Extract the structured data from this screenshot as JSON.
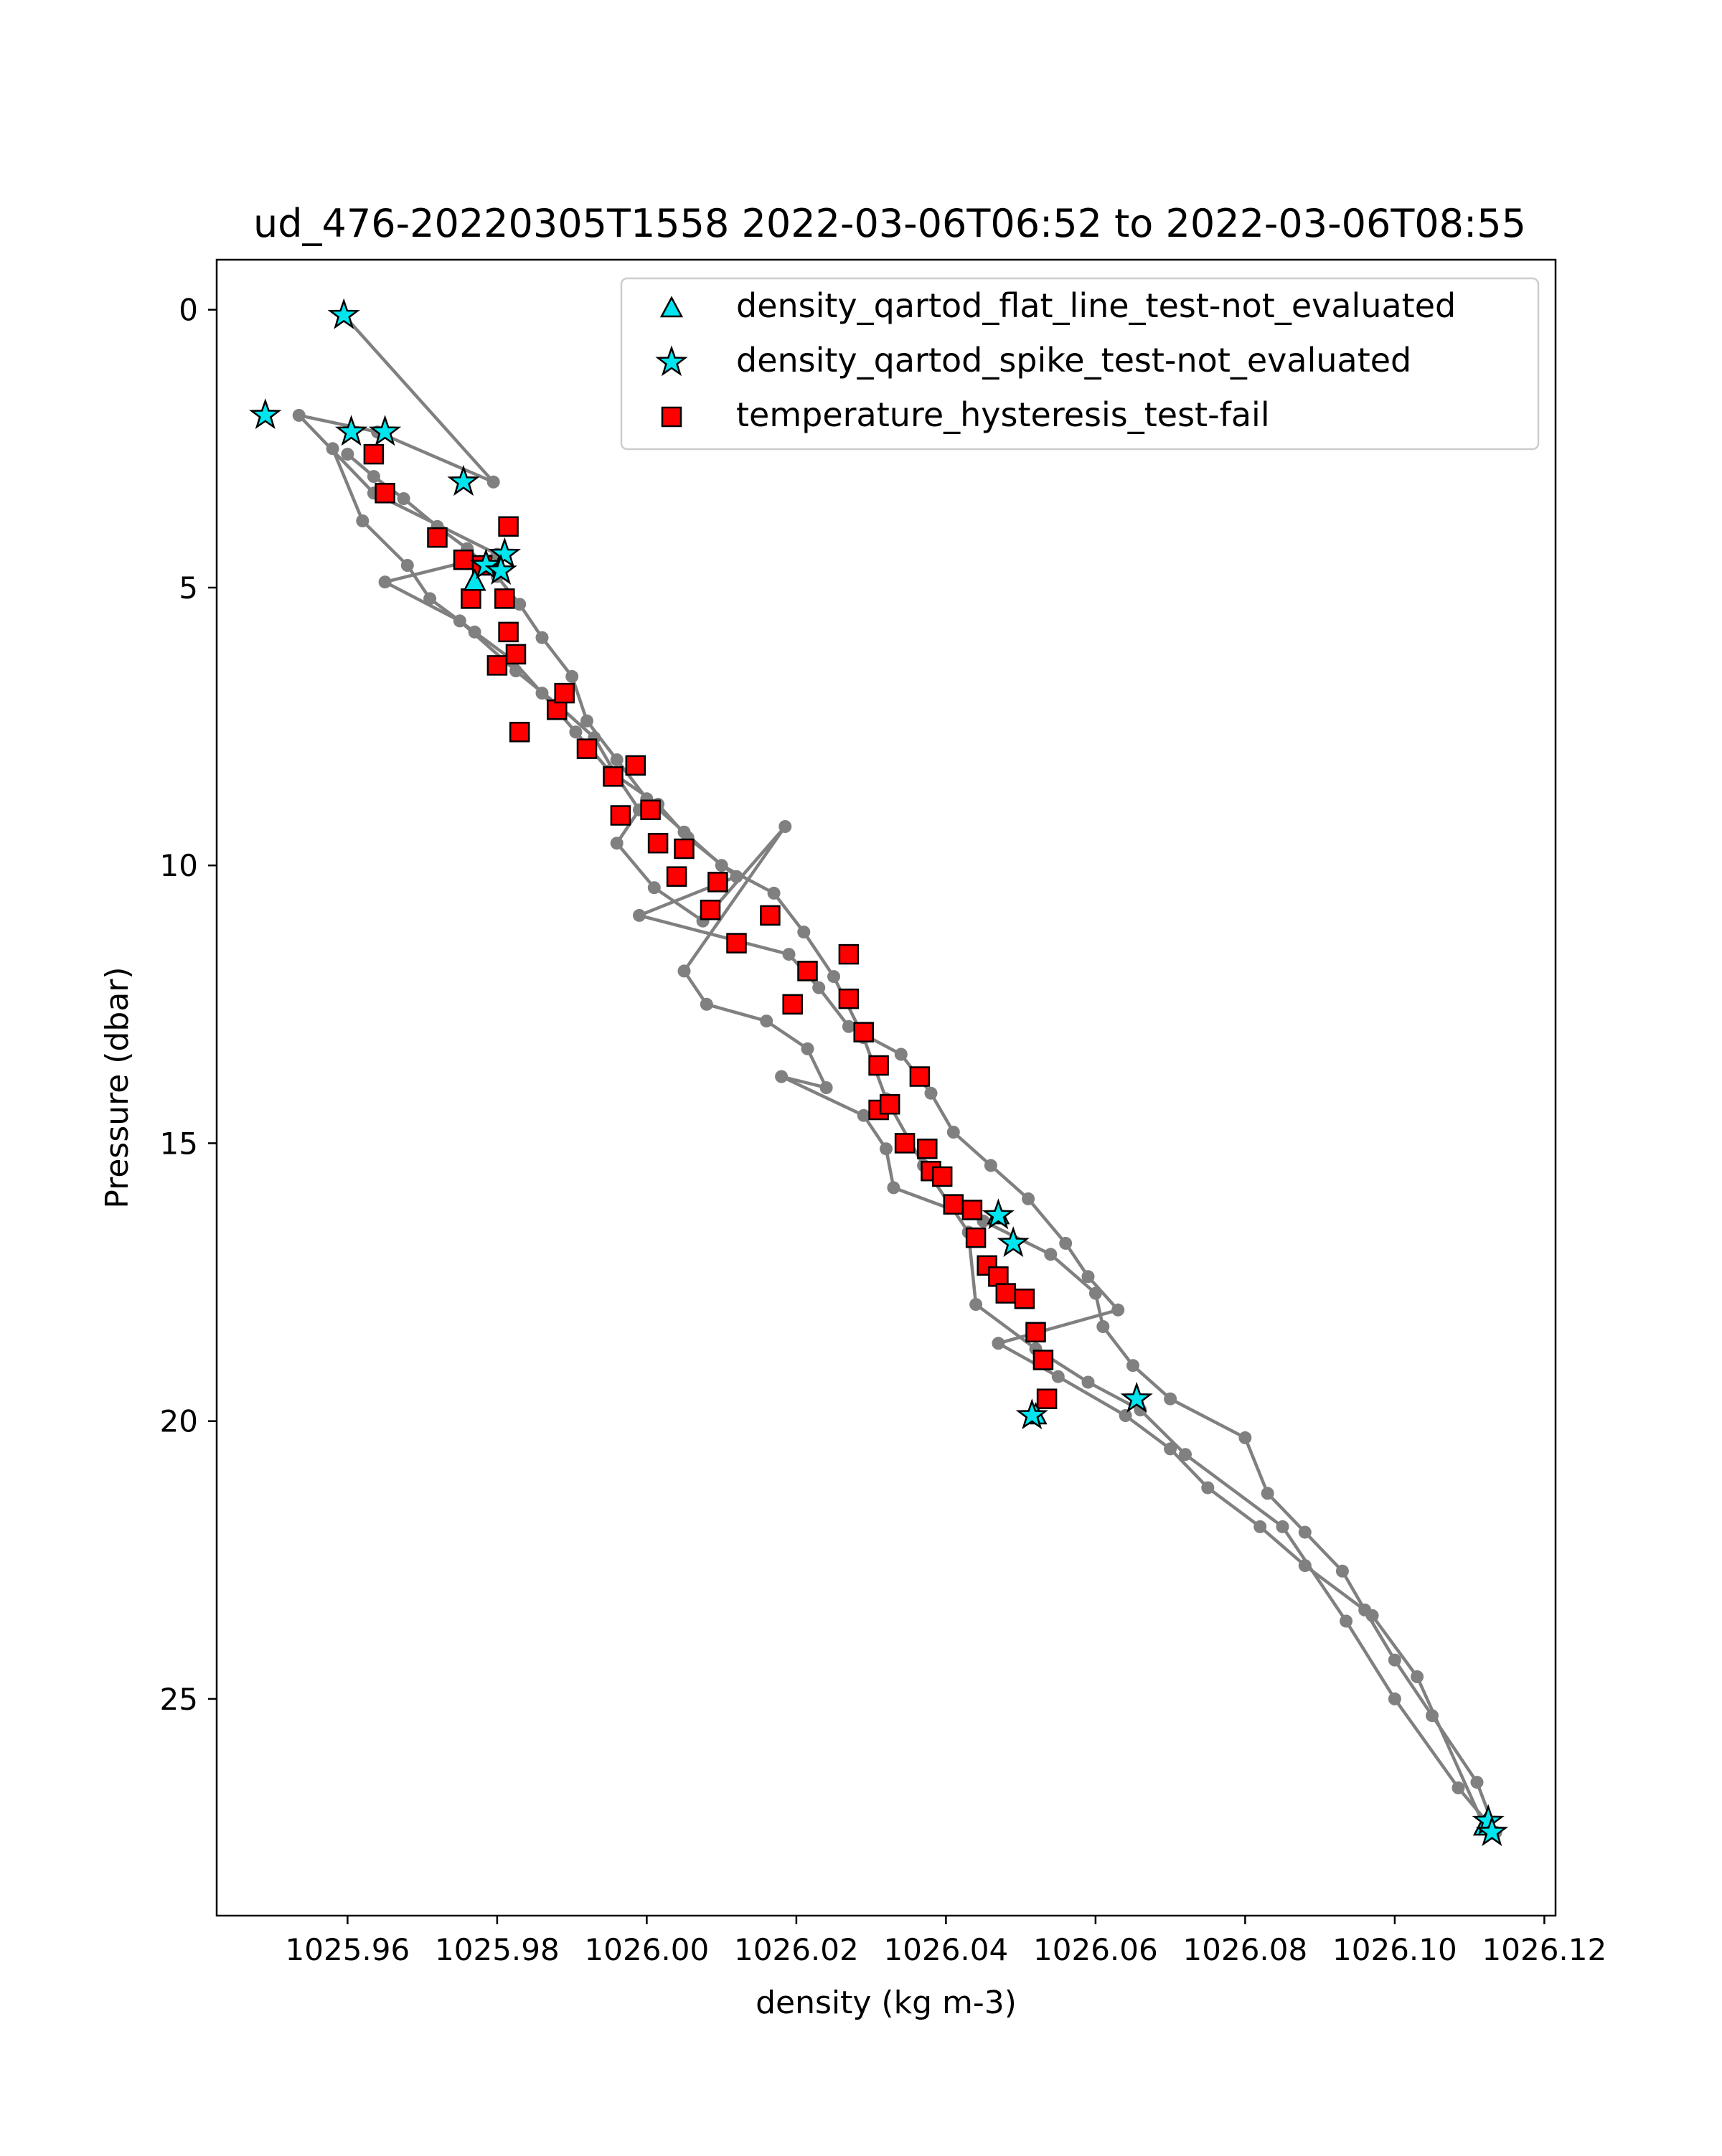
{
  "chart_data": {
    "type": "scatter",
    "title": "ud_476-20220305T1558 2022-03-06T06:52 to 2022-03-06T08:55",
    "xlabel": "density (kg m-3)",
    "ylabel": "Pressure (dbar)",
    "xlim": [
      1025.9425,
      1026.1215
    ],
    "ylim": [
      28.9,
      -0.9
    ],
    "y_inverted": true,
    "grid": false,
    "legend_position": "top-right",
    "x_ticks": [
      1025.96,
      1025.98,
      1026.0,
      1026.02,
      1026.04,
      1026.06,
      1026.08,
      1026.1,
      1026.12
    ],
    "x_tick_labels": [
      "1025.96",
      "1025.98",
      "1026.00",
      "1026.02",
      "1026.04",
      "1026.06",
      "1026.08",
      "1026.10",
      "1026.12"
    ],
    "y_ticks": [
      0,
      5,
      10,
      15,
      20,
      25
    ],
    "y_tick_labels": [
      "0",
      "5",
      "10",
      "15",
      "20",
      "25"
    ],
    "colors": {
      "profile": "#808080",
      "flat_line": "#00e5ee",
      "spike": "#00e5ee",
      "hysteresis": "#ff0000",
      "edge": "#000000"
    },
    "profile": {
      "x": [
        1025.9595,
        1025.9795,
        1025.964,
        1025.9535,
        1025.9635,
        1025.98,
        1025.965,
        1025.975,
        1025.9825,
        1025.988,
        1025.993,
        1025.996,
        1025.999,
        1025.996,
        1026.001,
        1026.0075,
        1026.0185,
        1026.005,
        1026.008,
        1026.016,
        1026.0215,
        1026.024,
        1026.018,
        1026.029,
        1026.032,
        1026.033,
        1026.045,
        1026.054,
        1026.06,
        1026.061,
        1026.065,
        1026.07,
        1026.08,
        1026.083,
        1026.088,
        1026.093,
        1026.096,
        1026.1,
        1026.105,
        1026.111,
        1026.1135,
        1026.1085,
        1026.1,
        1026.0935,
        1026.085,
        1026.072,
        1026.066,
        1026.059,
        1026.052,
        1026.044,
        1026.043,
        1026.037,
        1026.032,
        1026.029,
        1026.025,
        1026.021,
        1026.017,
        1026.01,
        1026.005,
        1026.0,
        1025.996,
        1025.992,
        1025.99,
        1025.986,
        1025.983,
        1025.98,
        1025.976,
        1025.972,
        1025.9675,
        1025.9635,
        1025.96
      ],
      "y": [
        0.1,
        3.1,
        2.2,
        1.9,
        3.3,
        4.4,
        4.9,
        5.6,
        6.5,
        7.1,
        7.7,
        8.4,
        9.0,
        9.6,
        10.4,
        11.0,
        9.3,
        11.9,
        12.5,
        12.8,
        13.3,
        14.0,
        13.8,
        14.5,
        15.1,
        15.8,
        16.4,
        17.0,
        17.7,
        18.3,
        19.0,
        19.6,
        20.3,
        21.3,
        22.0,
        22.7,
        23.4,
        24.3,
        25.3,
        26.5,
        27.4,
        26.6,
        25.0,
        23.6,
        21.9,
        20.6,
        19.8,
        19.3,
        18.7,
        17.9,
        16.6,
        15.4,
        14.2,
        13.1,
        12.0,
        11.2,
        10.5,
        10.0,
        9.4,
        8.8,
        8.1,
        7.4,
        6.6,
        5.9,
        5.3,
        4.8,
        4.3,
        3.9,
        3.4,
        3.0,
        2.6
      ]
    },
    "profile_extra": {
      "x": [
        1025.958,
        1025.962,
        1025.968,
        1025.971,
        1025.977,
        1025.982,
        1025.986,
        1025.9905,
        1025.995,
        1026.0015,
        1026.0055,
        1026.012,
        1025.999,
        1026.019,
        1026.023,
        1026.027,
        1026.034,
        1026.038,
        1026.041,
        1026.046,
        1026.051,
        1026.056,
        1026.059,
        1026.063,
        1026.047,
        1026.055,
        1026.064,
        1026.07,
        1026.075,
        1026.082,
        1026.088,
        1026.097,
        1026.103,
        1026.112
      ],
      "y": [
        2.5,
        3.8,
        4.6,
        5.2,
        5.8,
        6.3,
        6.9,
        7.6,
        8.3,
        8.9,
        9.5,
        10.2,
        10.9,
        11.6,
        12.2,
        12.9,
        13.4,
        14.1,
        14.8,
        15.4,
        16.0,
        16.8,
        17.4,
        18.0,
        18.6,
        19.2,
        19.9,
        20.5,
        21.2,
        21.9,
        22.6,
        23.5,
        24.6,
        27.3
      ]
    },
    "series": [
      {
        "name": "density_qartod_flat_line_test-not_evaluated",
        "marker": "triangle",
        "x": [
          1025.977,
          1026.047,
          1026.112,
          1026.052
        ],
        "y": [
          4.9,
          16.3,
          27.3,
          19.9
        ]
      },
      {
        "name": "density_qartod_spike_test-not_evaluated",
        "marker": "star",
        "x": [
          1025.9595,
          1025.949,
          1025.9605,
          1025.965,
          1025.9755,
          1025.981,
          1025.9785,
          1025.9805,
          1026.047,
          1026.049,
          1026.0655,
          1026.0515,
          1026.1125,
          1026.113
        ],
        "y": [
          0.1,
          1.9,
          2.2,
          2.2,
          3.1,
          4.4,
          4.6,
          4.7,
          16.3,
          16.8,
          19.6,
          19.9,
          27.2,
          27.4
        ]
      },
      {
        "name": "temperature_hysteresis_test-fail",
        "marker": "square",
        "x": [
          1025.9635,
          1025.965,
          1025.972,
          1025.9755,
          1025.9765,
          1025.978,
          1025.9815,
          1025.981,
          1025.9825,
          1025.9815,
          1025.98,
          1025.983,
          1025.988,
          1025.989,
          1025.992,
          1025.9955,
          1025.9965,
          1025.9985,
          1026.0005,
          1026.0015,
          1026.004,
          1026.005,
          1026.0085,
          1026.0095,
          1026.012,
          1026.0165,
          1026.0195,
          1026.0215,
          1026.027,
          1026.027,
          1026.029,
          1026.031,
          1026.031,
          1026.0325,
          1026.0345,
          1026.0365,
          1026.0375,
          1026.038,
          1026.0395,
          1026.041,
          1026.0435,
          1026.044,
          1026.0455,
          1026.047,
          1026.048,
          1026.0505,
          1026.052,
          1026.053,
          1026.0535
        ],
        "y": [
          2.6,
          3.3,
          4.1,
          4.5,
          5.2,
          4.6,
          3.9,
          5.2,
          6.2,
          5.8,
          6.4,
          7.6,
          7.2,
          6.9,
          7.9,
          8.4,
          9.1,
          8.2,
          9.0,
          9.6,
          10.2,
          9.7,
          10.8,
          10.3,
          11.4,
          10.9,
          12.5,
          11.9,
          11.6,
          12.4,
          13.0,
          13.6,
          14.4,
          14.3,
          15.0,
          13.8,
          15.1,
          15.5,
          15.6,
          16.1,
          16.2,
          16.7,
          17.2,
          17.4,
          17.7,
          17.8,
          18.4,
          18.9,
          19.6
        ]
      }
    ]
  }
}
